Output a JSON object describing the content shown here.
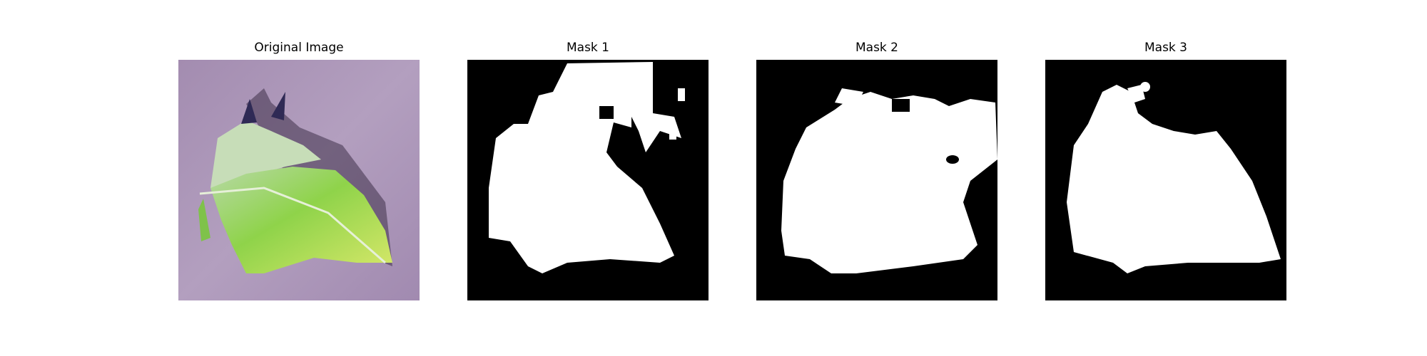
{
  "figure": {
    "panels": [
      {
        "title": "Original Image",
        "content": "photo of a green leaf on a purple background"
      },
      {
        "title": "Mask 1",
        "content": "binary segmentation mask"
      },
      {
        "title": "Mask 2",
        "content": "binary segmentation mask"
      },
      {
        "title": "Mask 3",
        "content": "binary segmentation mask"
      }
    ]
  },
  "colors": {
    "mask_background": "#000000",
    "mask_foreground": "#ffffff",
    "photo_background": "#a893b4",
    "leaf_green": "#9ad65a"
  }
}
